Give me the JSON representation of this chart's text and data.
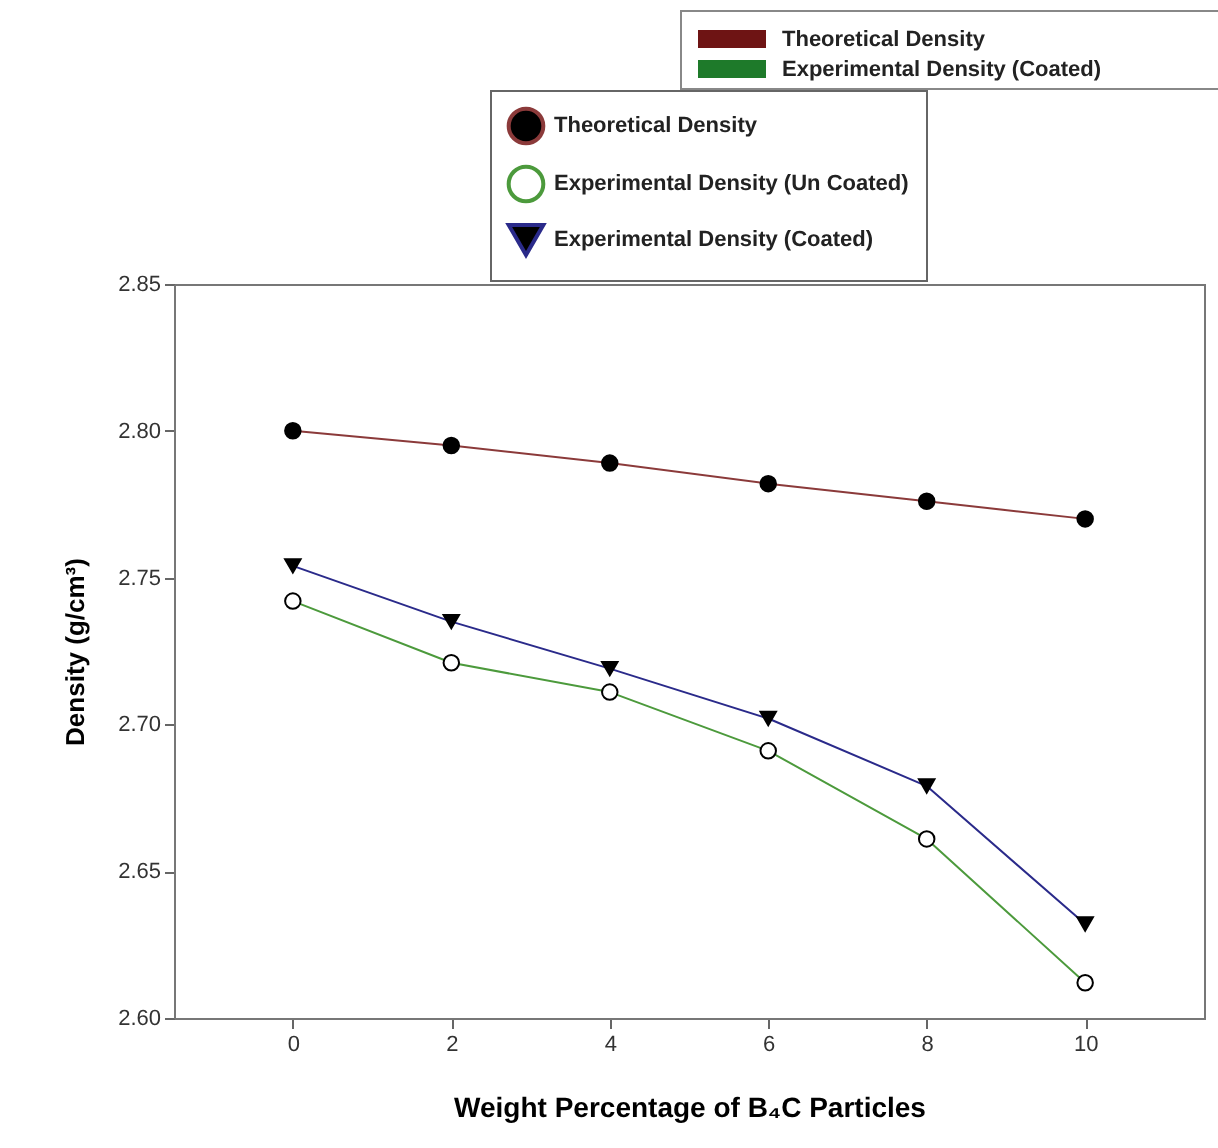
{
  "chart_data": {
    "type": "line",
    "xlabel": "Weight Percentage of B₄C Particles",
    "ylabel": "Density (g/cm³)",
    "x": [
      0,
      2,
      4,
      6,
      8,
      10
    ],
    "series": [
      {
        "name": "Theoretical Density",
        "color": "#8b3a3a",
        "marker": "circle",
        "values": [
          2.8,
          2.795,
          2.789,
          2.782,
          2.776,
          2.77
        ]
      },
      {
        "name": "Experimental Density (Un Coated)",
        "color": "#4c9a3c",
        "marker": "circle",
        "values": [
          2.742,
          2.721,
          2.711,
          2.691,
          2.661,
          2.612
        ]
      },
      {
        "name": "Experimental Density (Coated)",
        "color": "#2a2a8a",
        "marker": "triangle",
        "values": [
          2.754,
          2.735,
          2.719,
          2.702,
          2.679,
          2.632
        ]
      }
    ],
    "xlim": [
      -1.5,
      11.5
    ],
    "xticks": [
      0,
      2,
      4,
      6,
      8,
      10
    ],
    "ylim": [
      2.6,
      2.85
    ],
    "yticks": [
      {
        "value": 2.6,
        "label": "2.60"
      },
      {
        "value": 2.65,
        "label": "2.65"
      },
      {
        "value": 2.7,
        "label": "2.70"
      },
      {
        "value": 2.75,
        "label": "2.75"
      },
      {
        "value": 2.8,
        "label": "2.80"
      },
      {
        "value": 2.85,
        "label": "2.85"
      }
    ],
    "legend": "top right",
    "grid": false,
    "line_style": "solid",
    "annotations": [
      "Theoretical Density",
      "Experimental Density (Coated)"
    ]
  }
}
